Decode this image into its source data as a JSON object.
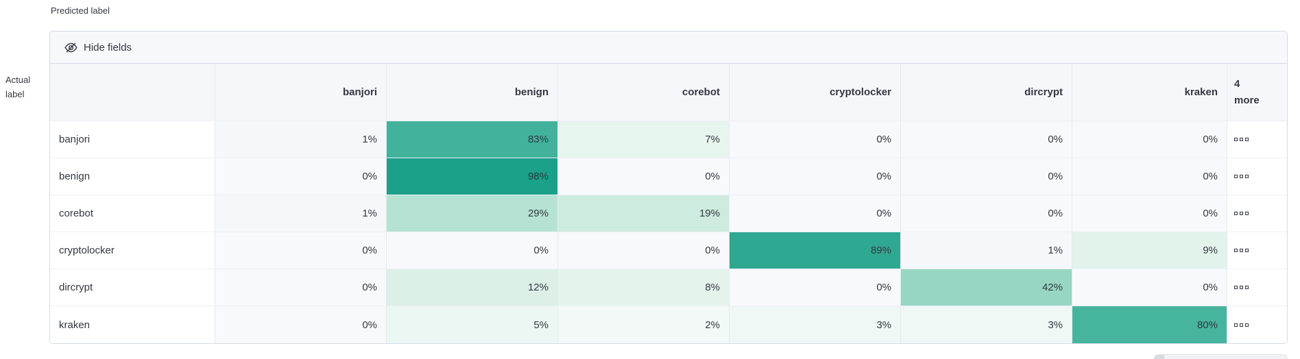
{
  "axes": {
    "predicted": "Predicted label",
    "actual_line1": "Actual",
    "actual_line2": "label"
  },
  "toolbar": {
    "hide_fields": "Hide fields",
    "hide_fields_icon": "eye-closed-icon"
  },
  "grid": {
    "columns": [
      "banjori",
      "benign",
      "corebot",
      "cryptolocker",
      "dircrypt",
      "kraken"
    ],
    "more_header": {
      "line1": "4",
      "line2": "more"
    },
    "more_icon": "boxes-horizontal-icon",
    "rows": [
      {
        "label": "banjori",
        "values": [
          "1%",
          "83%",
          "7%",
          "0%",
          "0%",
          "0%"
        ],
        "colors": [
          "#f4f8fa",
          "#42b29c",
          "#e7f5ef",
          "#f7f9fc",
          "#f7f9fc",
          "#f7f9fc"
        ]
      },
      {
        "label": "benign",
        "values": [
          "0%",
          "98%",
          "0%",
          "0%",
          "0%",
          "0%"
        ],
        "colors": [
          "#f7f9fc",
          "#1ba089",
          "#f7f9fc",
          "#f7f9fc",
          "#f7f9fc",
          "#f7f9fc"
        ]
      },
      {
        "label": "corebot",
        "values": [
          "1%",
          "29%",
          "19%",
          "0%",
          "0%",
          "0%"
        ],
        "colors": [
          "#f4f8fa",
          "#b5e2d2",
          "#cdebde",
          "#f7f9fc",
          "#f7f9fc",
          "#f7f9fc"
        ]
      },
      {
        "label": "cryptolocker",
        "values": [
          "0%",
          "0%",
          "0%",
          "89%",
          "1%",
          "9%"
        ],
        "colors": [
          "#f7f9fc",
          "#f7f9fc",
          "#f7f9fc",
          "#2fa892",
          "#f4f8fa",
          "#e2f3eb"
        ]
      },
      {
        "label": "dircrypt",
        "values": [
          "0%",
          "12%",
          "8%",
          "0%",
          "42%",
          "0%"
        ],
        "colors": [
          "#f7f9fc",
          "#dcf0e7",
          "#e4f4ec",
          "#f7f9fc",
          "#97d6c2",
          "#f7f9fc"
        ]
      },
      {
        "label": "kraken",
        "values": [
          "0%",
          "5%",
          "2%",
          "3%",
          "3%",
          "80%"
        ],
        "colors": [
          "#f7f9fc",
          "#ebf7f2",
          "#f2f9f6",
          "#eff8f4",
          "#eff8f4",
          "#47b49e"
        ]
      }
    ]
  },
  "chart_data": {
    "type": "heatmap",
    "title": "Confusion matrix",
    "xlabel": "Predicted label",
    "ylabel": "Actual label",
    "x_categories": [
      "banjori",
      "benign",
      "corebot",
      "cryptolocker",
      "dircrypt",
      "kraken"
    ],
    "y_categories": [
      "banjori",
      "benign",
      "corebot",
      "cryptolocker",
      "dircrypt",
      "kraken"
    ],
    "hidden_columns_badge": "4 more",
    "values_percent": [
      [
        1,
        83,
        7,
        0,
        0,
        0
      ],
      [
        0,
        98,
        0,
        0,
        0,
        0
      ],
      [
        1,
        29,
        19,
        0,
        0,
        0
      ],
      [
        0,
        0,
        0,
        89,
        1,
        9
      ],
      [
        0,
        12,
        8,
        0,
        42,
        0
      ],
      [
        0,
        5,
        2,
        3,
        3,
        80
      ]
    ],
    "legend_position": "none",
    "grid_on": true
  },
  "colors": {
    "heat_max": "#1ba089",
    "heat_high": "#42b29c",
    "heat_mid": "#97d6c2",
    "heat_low": "#e2f3eb",
    "heat_zero": "#f7f9fc",
    "panel_border": "#d3dae6",
    "header_bg": "#f5f7fb",
    "toolbar_bg": "#f7f8fc",
    "text": "#343741"
  }
}
